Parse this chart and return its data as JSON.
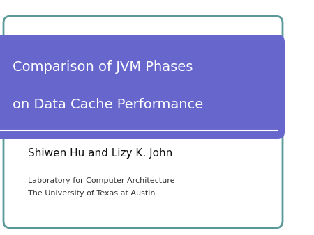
{
  "background_color": "#ffffff",
  "slide_border_color": "#5b9999",
  "slide_border_linewidth": 2.0,
  "banner_color": "#6666cc",
  "banner_text_line1": "Comparison of JVM Phases",
  "banner_text_line2": "on Data Cache Performance",
  "banner_text_color": "#ffffff",
  "banner_text_fontsize": 14,
  "author_text": "Shiwen Hu and Lizy K. John",
  "author_fontsize": 11,
  "author_color": "#111111",
  "lab_text": "Laboratory for Computer Architecture",
  "uni_text": "The University of Texas at Austin",
  "lab_fontsize": 8,
  "lab_color": "#333333",
  "white_line_color": "#ffffff"
}
